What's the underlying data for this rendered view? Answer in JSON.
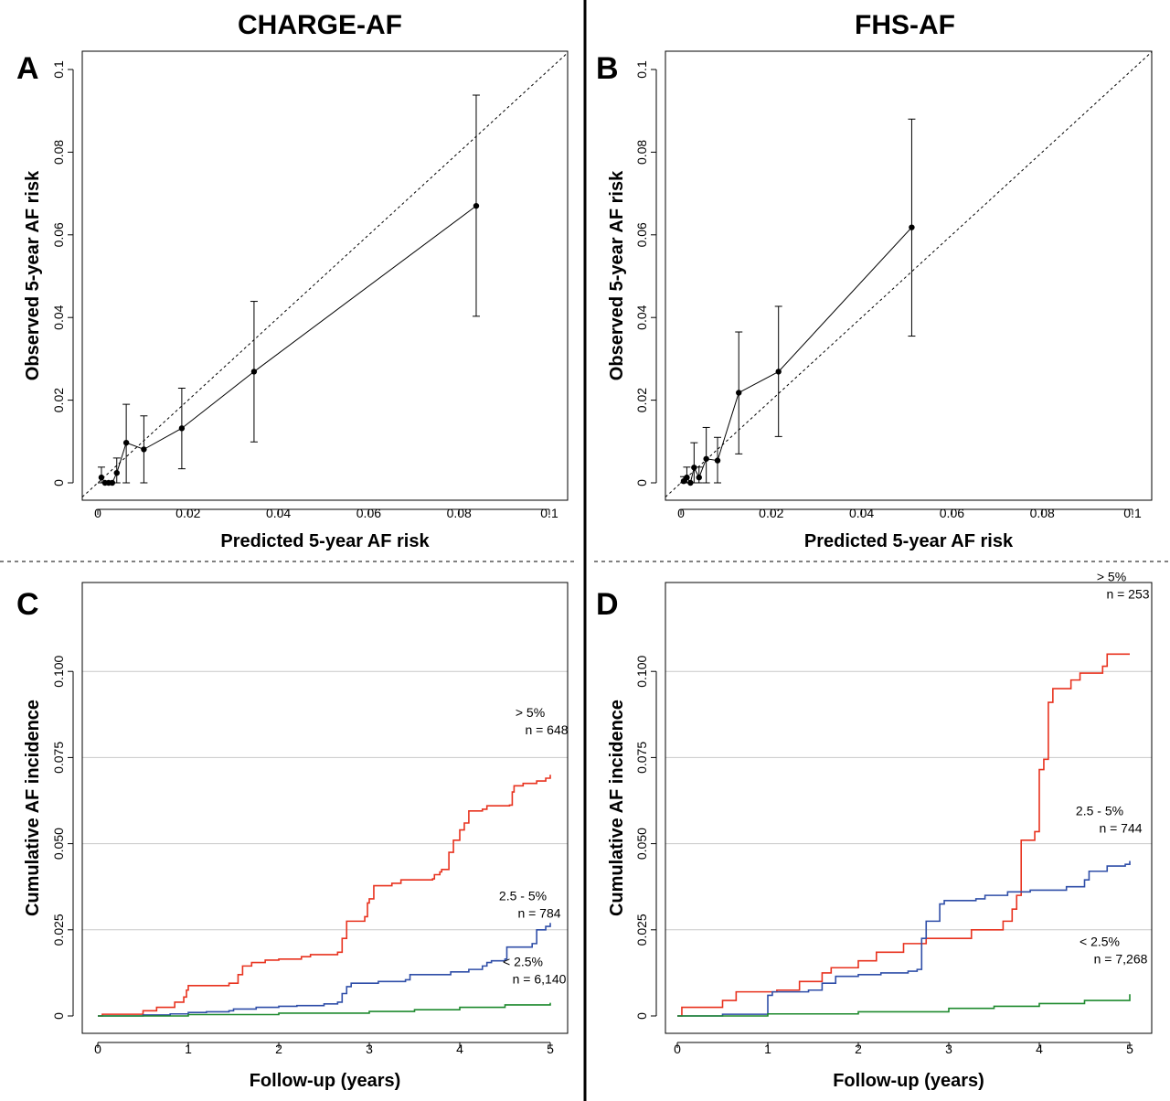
{
  "titles": {
    "left": "CHARGE-AF",
    "right": "FHS-AF"
  },
  "colors": {
    "over5": "#e8321e",
    "mid": "#2f4ea8",
    "under2_5": "#1e8a2e",
    "grid": "#c8c8c8",
    "ink": "#000000"
  },
  "chart_data": [
    {
      "panel": "A",
      "type": "scatter",
      "title": "CHARGE-AF",
      "xlabel": "Predicted 5-year AF risk",
      "ylabel": "Observed 5-year AF risk",
      "xlim": [
        0,
        0.1
      ],
      "ylim": [
        0,
        0.1
      ],
      "xticks": [
        0,
        0.02,
        0.04,
        0.06,
        0.08,
        0.1
      ],
      "yticks": [
        0,
        0.02,
        0.04,
        0.06,
        0.08,
        0.1
      ],
      "xtick_labels": [
        "0",
        "0.02",
        "0.04",
        "0.06",
        "0.08",
        "0.1"
      ],
      "ytick_labels": [
        "0",
        "0.02",
        "0.04",
        "0.06",
        "0.08",
        "0.1"
      ],
      "reference_line": "diagonal dashed y = x",
      "points": [
        {
          "x": 0.0008,
          "y": 0.0013,
          "lo": 0.0,
          "hi": 0.0038
        },
        {
          "x": 0.0016,
          "y": 0.0,
          "lo": 0.0,
          "hi": 0.0
        },
        {
          "x": 0.0024,
          "y": 0.0,
          "lo": 0.0,
          "hi": 0.0
        },
        {
          "x": 0.0032,
          "y": 0.0,
          "lo": 0.0,
          "hi": 0.0
        },
        {
          "x": 0.0042,
          "y": 0.0024,
          "lo": 0.0,
          "hi": 0.006
        },
        {
          "x": 0.0063,
          "y": 0.0097,
          "lo": 0.0,
          "hi": 0.019
        },
        {
          "x": 0.0102,
          "y": 0.0081,
          "lo": 0.0,
          "hi": 0.0162
        },
        {
          "x": 0.0186,
          "y": 0.0132,
          "lo": 0.0034,
          "hi": 0.0229
        },
        {
          "x": 0.0346,
          "y": 0.0269,
          "lo": 0.0099,
          "hi": 0.0439
        },
        {
          "x": 0.0838,
          "y": 0.067,
          "lo": 0.0403,
          "hi": 0.0938
        }
      ]
    },
    {
      "panel": "B",
      "type": "scatter",
      "title": "FHS-AF",
      "xlabel": "Predicted 5-year AF risk",
      "ylabel": "Observed 5-year AF risk",
      "xlim": [
        0,
        0.1
      ],
      "ylim": [
        0,
        0.1
      ],
      "xticks": [
        0,
        0.02,
        0.04,
        0.06,
        0.08,
        0.1
      ],
      "yticks": [
        0,
        0.02,
        0.04,
        0.06,
        0.08,
        0.1
      ],
      "xtick_labels": [
        "0",
        "0.02",
        "0.04",
        "0.06",
        "0.08",
        "0.1"
      ],
      "ytick_labels": [
        "0",
        "0.02",
        "0.04",
        "0.06",
        "0.08",
        "0.1"
      ],
      "reference_line": "diagonal dashed y = x",
      "points": [
        {
          "x": 0.0006,
          "y": 0.0004,
          "lo": 0.0,
          "hi": 0.0015
        },
        {
          "x": 0.0013,
          "y": 0.0013,
          "lo": 0.0,
          "hi": 0.0038
        },
        {
          "x": 0.0021,
          "y": 0.0,
          "lo": 0.0,
          "hi": 0.0
        },
        {
          "x": 0.0029,
          "y": 0.0037,
          "lo": 0.0,
          "hi": 0.0097
        },
        {
          "x": 0.004,
          "y": 0.0013,
          "lo": 0.0,
          "hi": 0.0038
        },
        {
          "x": 0.0056,
          "y": 0.0058,
          "lo": 0.0,
          "hi": 0.0134
        },
        {
          "x": 0.0081,
          "y": 0.0054,
          "lo": 0.0,
          "hi": 0.011
        },
        {
          "x": 0.0128,
          "y": 0.0218,
          "lo": 0.007,
          "hi": 0.0365
        },
        {
          "x": 0.0216,
          "y": 0.0269,
          "lo": 0.0112,
          "hi": 0.0427
        },
        {
          "x": 0.0511,
          "y": 0.0618,
          "lo": 0.0355,
          "hi": 0.088
        }
      ]
    },
    {
      "panel": "C",
      "type": "line",
      "xlabel": "Follow-up (years)",
      "ylabel": "Cumulative AF incidence",
      "xlim": [
        0,
        5
      ],
      "ylim": [
        0,
        0.125
      ],
      "xticks": [
        0,
        1,
        2,
        3,
        4,
        5
      ],
      "yticks": [
        0,
        0.025,
        0.05,
        0.075,
        0.1
      ],
      "xtick_labels": [
        "0",
        "1",
        "2",
        "3",
        "4",
        "5"
      ],
      "ytick_labels": [
        "0",
        "0.025",
        "0.050",
        "0.075",
        "0.100"
      ],
      "grid": "horizontal",
      "step": true,
      "series": [
        {
          "name": "> 5%",
          "n_label": "n = 648",
          "color_key": "over5",
          "points": [
            [
              0,
              0
            ],
            [
              0.05,
              0.0005
            ],
            [
              0.5,
              0.0015
            ],
            [
              0.65,
              0.0025
            ],
            [
              0.85,
              0.004
            ],
            [
              0.95,
              0.0055
            ],
            [
              0.98,
              0.0075
            ],
            [
              1.0,
              0.0088
            ],
            [
              1.45,
              0.0095
            ],
            [
              1.55,
              0.012
            ],
            [
              1.6,
              0.0145
            ],
            [
              1.7,
              0.0155
            ],
            [
              1.85,
              0.0162
            ],
            [
              2.0,
              0.0165
            ],
            [
              2.25,
              0.0172
            ],
            [
              2.35,
              0.0178
            ],
            [
              2.65,
              0.0185
            ],
            [
              2.7,
              0.0225
            ],
            [
              2.75,
              0.0275
            ],
            [
              2.95,
              0.0288
            ],
            [
              2.98,
              0.0328
            ],
            [
              3.0,
              0.034
            ],
            [
              3.05,
              0.0378
            ],
            [
              3.25,
              0.0385
            ],
            [
              3.35,
              0.0395
            ],
            [
              3.7,
              0.0398
            ],
            [
              3.72,
              0.041
            ],
            [
              3.78,
              0.0418
            ],
            [
              3.8,
              0.0425
            ],
            [
              3.88,
              0.0475
            ],
            [
              3.93,
              0.051
            ],
            [
              4.0,
              0.054
            ],
            [
              4.05,
              0.056
            ],
            [
              4.1,
              0.0595
            ],
            [
              4.25,
              0.06
            ],
            [
              4.3,
              0.061
            ],
            [
              4.55,
              0.0612
            ],
            [
              4.58,
              0.065
            ],
            [
              4.6,
              0.0668
            ],
            [
              4.7,
              0.0675
            ],
            [
              4.85,
              0.0682
            ],
            [
              4.95,
              0.069
            ],
            [
              5.0,
              0.07
            ]
          ]
        },
        {
          "name": "2.5 - 5%",
          "n_label": "n = 784",
          "color_key": "mid",
          "points": [
            [
              0,
              0
            ],
            [
              0.5,
              0.0003
            ],
            [
              0.8,
              0.0006
            ],
            [
              1.0,
              0.001
            ],
            [
              1.2,
              0.0012
            ],
            [
              1.45,
              0.0015
            ],
            [
              1.5,
              0.002
            ],
            [
              1.75,
              0.0025
            ],
            [
              2.0,
              0.0028
            ],
            [
              2.2,
              0.003
            ],
            [
              2.5,
              0.0035
            ],
            [
              2.65,
              0.004
            ],
            [
              2.7,
              0.0065
            ],
            [
              2.75,
              0.0085
            ],
            [
              2.8,
              0.0095
            ],
            [
              3.1,
              0.01
            ],
            [
              3.4,
              0.0105
            ],
            [
              3.45,
              0.012
            ],
            [
              3.9,
              0.0128
            ],
            [
              4.1,
              0.0135
            ],
            [
              4.25,
              0.0145
            ],
            [
              4.3,
              0.0155
            ],
            [
              4.35,
              0.016
            ],
            [
              4.5,
              0.0165
            ],
            [
              4.52,
              0.02
            ],
            [
              4.8,
              0.021
            ],
            [
              4.85,
              0.025
            ],
            [
              4.95,
              0.026
            ],
            [
              5.0,
              0.027
            ]
          ]
        },
        {
          "name": "< 2.5%",
          "n_label": "n = 6,140",
          "color_key": "under2_5",
          "points": [
            [
              0,
              0
            ],
            [
              1.0,
              0.0004
            ],
            [
              2.0,
              0.0008
            ],
            [
              3.0,
              0.0013
            ],
            [
              3.5,
              0.0018
            ],
            [
              4.0,
              0.0025
            ],
            [
              4.5,
              0.0032
            ],
            [
              5.0,
              0.0038
            ]
          ]
        }
      ]
    },
    {
      "panel": "D",
      "type": "line",
      "xlabel": "Follow-up (years)",
      "ylabel": "Cumulative AF incidence",
      "xlim": [
        0,
        5
      ],
      "ylim": [
        0,
        0.125
      ],
      "xticks": [
        0,
        1,
        2,
        3,
        4,
        5
      ],
      "yticks": [
        0,
        0.025,
        0.05,
        0.075,
        0.1
      ],
      "xtick_labels": [
        "0",
        "1",
        "2",
        "3",
        "4",
        "5"
      ],
      "ytick_labels": [
        "0",
        "0.025",
        "0.050",
        "0.075",
        "0.100"
      ],
      "grid": "horizontal",
      "step": true,
      "series": [
        {
          "name": "> 5%",
          "n_label": "n = 253",
          "color_key": "over5",
          "points": [
            [
              0,
              0
            ],
            [
              0.05,
              0.0025
            ],
            [
              0.5,
              0.0045
            ],
            [
              0.65,
              0.007
            ],
            [
              1.1,
              0.0075
            ],
            [
              1.35,
              0.01
            ],
            [
              1.6,
              0.0125
            ],
            [
              1.7,
              0.014
            ],
            [
              2.0,
              0.016
            ],
            [
              2.2,
              0.0185
            ],
            [
              2.5,
              0.021
            ],
            [
              2.75,
              0.0225
            ],
            [
              3.25,
              0.025
            ],
            [
              3.6,
              0.0275
            ],
            [
              3.7,
              0.031
            ],
            [
              3.75,
              0.035
            ],
            [
              3.8,
              0.051
            ],
            [
              3.95,
              0.0535
            ],
            [
              4.0,
              0.0715
            ],
            [
              4.05,
              0.0745
            ],
            [
              4.1,
              0.091
            ],
            [
              4.15,
              0.095
            ],
            [
              4.35,
              0.0975
            ],
            [
              4.45,
              0.0995
            ],
            [
              4.7,
              0.1015
            ],
            [
              4.75,
              0.105
            ],
            [
              5.0,
              0.105
            ]
          ]
        },
        {
          "name": "2.5 - 5%",
          "n_label": "n = 744",
          "color_key": "mid",
          "points": [
            [
              0,
              0
            ],
            [
              0.5,
              0.0005
            ],
            [
              1.0,
              0.006
            ],
            [
              1.05,
              0.007
            ],
            [
              1.45,
              0.0075
            ],
            [
              1.6,
              0.0095
            ],
            [
              1.75,
              0.0115
            ],
            [
              2.0,
              0.012
            ],
            [
              2.25,
              0.0125
            ],
            [
              2.55,
              0.013
            ],
            [
              2.65,
              0.0135
            ],
            [
              2.7,
              0.0225
            ],
            [
              2.75,
              0.0275
            ],
            [
              2.9,
              0.0325
            ],
            [
              2.95,
              0.0335
            ],
            [
              3.3,
              0.034
            ],
            [
              3.4,
              0.035
            ],
            [
              3.65,
              0.036
            ],
            [
              3.9,
              0.0365
            ],
            [
              4.3,
              0.0375
            ],
            [
              4.5,
              0.0395
            ],
            [
              4.55,
              0.042
            ],
            [
              4.75,
              0.0435
            ],
            [
              4.95,
              0.044
            ],
            [
              5.0,
              0.045
            ]
          ]
        },
        {
          "name": "< 2.5%",
          "n_label": "n = 7,268",
          "color_key": "under2_5",
          "points": [
            [
              0,
              0
            ],
            [
              1.0,
              0.0006
            ],
            [
              2.0,
              0.0012
            ],
            [
              3.0,
              0.0022
            ],
            [
              3.5,
              0.0028
            ],
            [
              4.0,
              0.0036
            ],
            [
              4.5,
              0.0045
            ],
            [
              5.0,
              0.0063
            ]
          ]
        }
      ]
    }
  ]
}
